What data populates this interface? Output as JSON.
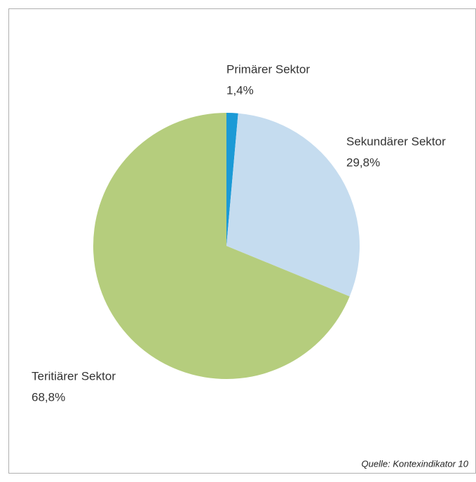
{
  "chart_data": {
    "type": "pie",
    "categories": [
      "Primärer Sektor",
      "Sekundärer Sektor",
      "Teritiärer Sektor"
    ],
    "values": [
      1.4,
      29.8,
      68.8
    ],
    "value_labels": [
      "1,4%",
      "29,8%",
      "68,8%"
    ],
    "colors": [
      "#1b9ad6",
      "#c5dcef",
      "#b5cd7d"
    ],
    "annotation": "Quelle: Kontexindikator 10"
  }
}
